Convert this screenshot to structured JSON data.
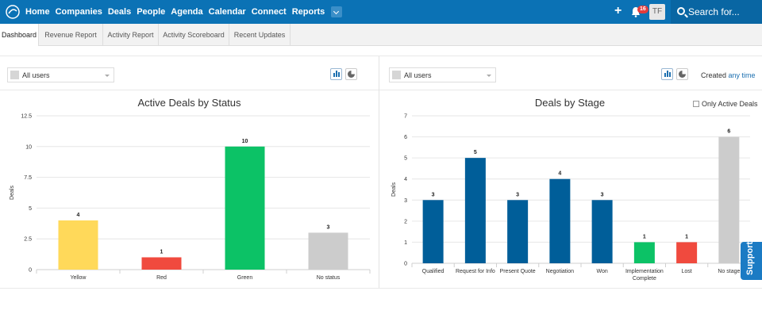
{
  "nav": {
    "items": [
      "Home",
      "Companies",
      "Deals",
      "People",
      "Agenda",
      "Calendar",
      "Connect",
      "Reports"
    ],
    "notifications": "16",
    "avatar": "TF",
    "search_placeholder": "Search for..."
  },
  "tabs": [
    "Dashboard",
    "Revenue Report",
    "Activity Report",
    "Activity Scoreboard",
    "Recent Updates"
  ],
  "left_panel": {
    "user_filter": "All users"
  },
  "right_panel": {
    "user_filter": "All users",
    "created_label": "Created",
    "created_value": "any time",
    "only_active_label": "Only Active Deals"
  },
  "support_label": "Support",
  "colors": {
    "nav": "#0b72b5",
    "blue": "#005e99",
    "yellow": "#ffd95a",
    "red": "#f04a3e",
    "green": "#0cc266",
    "gray": "#cccccc"
  },
  "chart_data": [
    {
      "type": "bar",
      "title": "Active Deals by Status",
      "ylabel": "Deals",
      "ylim": [
        0,
        12.5
      ],
      "yticks": [
        "0",
        "2.5",
        "5",
        "7.5",
        "10",
        "12.5"
      ],
      "categories": [
        "Yellow",
        "Red",
        "Green",
        "No status"
      ],
      "values": [
        4,
        1,
        10,
        3
      ],
      "bar_colors": [
        "#ffd95a",
        "#f04a3e",
        "#0cc266",
        "#cccccc"
      ]
    },
    {
      "type": "bar",
      "title": "Deals by Stage",
      "ylabel": "Deals",
      "ylim": [
        0,
        7
      ],
      "yticks": [
        "0",
        "1",
        "2",
        "3",
        "4",
        "5",
        "6",
        "7"
      ],
      "categories": [
        "Qualified",
        "Request for Info",
        "Present Quote",
        "Negotiation",
        "Won",
        "Implementation Complete",
        "Lost",
        "No stage"
      ],
      "values": [
        3,
        5,
        3,
        4,
        3,
        1,
        1,
        6
      ],
      "bar_colors": [
        "#005e99",
        "#005e99",
        "#005e99",
        "#005e99",
        "#005e99",
        "#0cc266",
        "#f04a3e",
        "#cccccc"
      ]
    }
  ]
}
